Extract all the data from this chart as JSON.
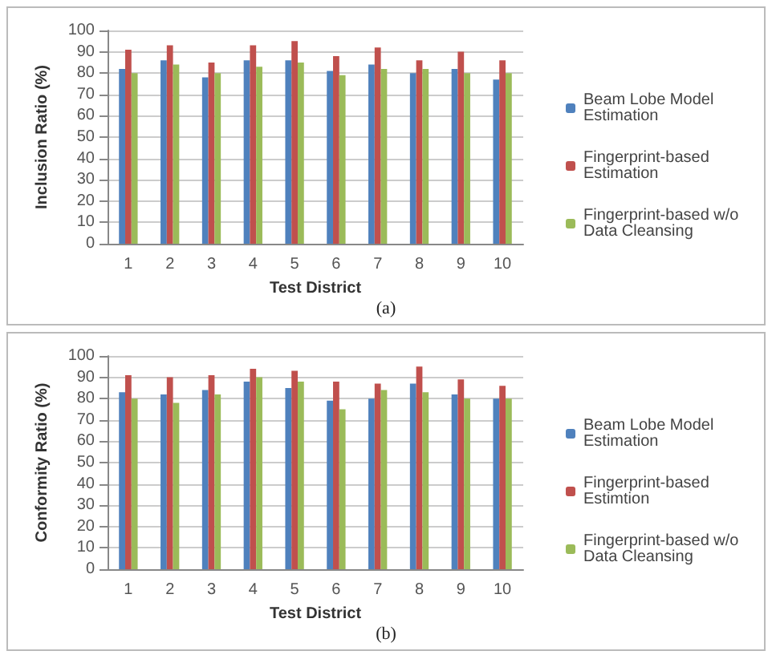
{
  "chart_data": [
    {
      "type": "bar",
      "xlabel": "Test District",
      "ylabel": "Inclusion Ratio (%)",
      "categories": [
        "1",
        "2",
        "3",
        "4",
        "5",
        "6",
        "7",
        "8",
        "9",
        "10"
      ],
      "series": [
        {
          "name": "Beam Lobe Model Estimation",
          "color": "#4f81bd",
          "values": [
            82,
            86,
            78,
            86,
            86,
            81,
            84,
            80,
            82,
            77
          ]
        },
        {
          "name": "Fingerprint-based Estimation",
          "color": "#c0504d",
          "values": [
            91,
            93,
            85,
            93,
            95,
            88,
            92,
            86,
            90,
            86
          ]
        },
        {
          "name": "Fingerprint-based w/o Data Cleansing",
          "color": "#9bbb59",
          "values": [
            80,
            84,
            80,
            83,
            85,
            79,
            82,
            82,
            80,
            80
          ]
        }
      ],
      "ylim": [
        0,
        100
      ],
      "yticks": [
        0,
        10,
        20,
        30,
        40,
        50,
        60,
        70,
        80,
        90,
        100
      ],
      "grid": "y",
      "legend": "right",
      "annotations": [
        "(a)"
      ]
    },
    {
      "type": "bar",
      "xlabel": "Test District",
      "ylabel": "Conformity Ratio (%)",
      "categories": [
        "1",
        "2",
        "3",
        "4",
        "5",
        "6",
        "7",
        "8",
        "9",
        "10"
      ],
      "series": [
        {
          "name": "Beam Lobe Model Estimation",
          "color": "#4f81bd",
          "values": [
            83,
            82,
            84,
            88,
            85,
            79,
            80,
            87,
            82,
            80
          ]
        },
        {
          "name": "Fingerprint-based Estimtion",
          "color": "#c0504d",
          "values": [
            91,
            90,
            91,
            94,
            93,
            88,
            87,
            95,
            89,
            86
          ]
        },
        {
          "name": "Fingerprint-based w/o Data Cleansing",
          "color": "#9bbb59",
          "values": [
            80,
            78,
            82,
            90,
            88,
            75,
            84,
            83,
            80,
            80
          ]
        }
      ],
      "ylim": [
        0,
        100
      ],
      "yticks": [
        0,
        10,
        20,
        30,
        40,
        50,
        60,
        70,
        80,
        90,
        100
      ],
      "grid": "y",
      "legend": "right",
      "annotations": [
        "(b)"
      ]
    }
  ]
}
